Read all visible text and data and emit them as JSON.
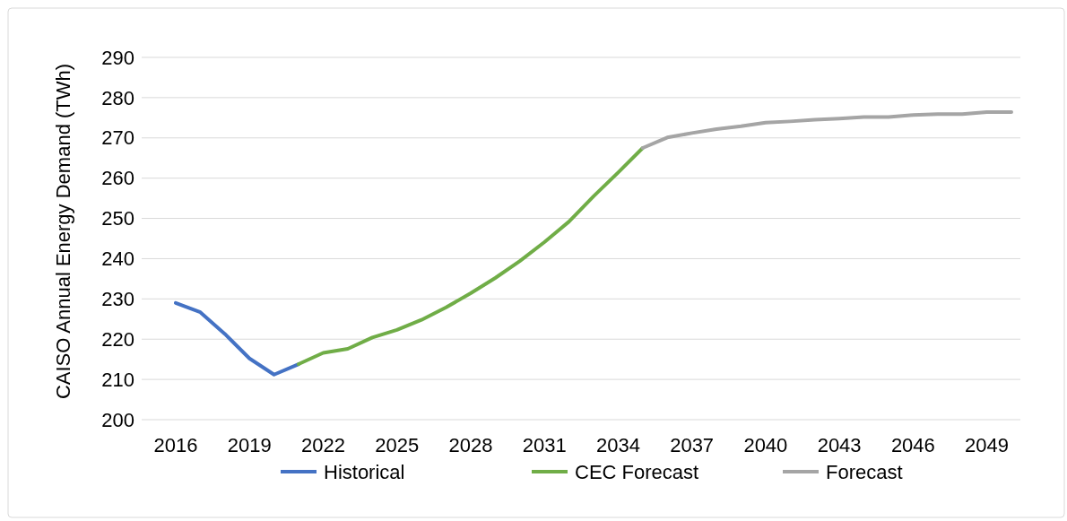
{
  "chart_data": {
    "type": "line",
    "ylabel": "CAISO Annual Energy Demand (TWh)",
    "categories": [
      "2016",
      null,
      null,
      "2019",
      null,
      null,
      "2022",
      null,
      null,
      "2025",
      null,
      null,
      "2028",
      null,
      null,
      "2031",
      null,
      null,
      "2034",
      null,
      null,
      "2037",
      null,
      null,
      "2040",
      null,
      null,
      "2043",
      null,
      null,
      "2046",
      null,
      null,
      "2049",
      null
    ],
    "series": [
      {
        "name": "Historical",
        "color": "#4472c4",
        "values": [
          229,
          226.7,
          221.3,
          215.2,
          211.2,
          213.8,
          null,
          null,
          null,
          null,
          null,
          null,
          null,
          null,
          null,
          null,
          null,
          null,
          null,
          null,
          null,
          null,
          null,
          null,
          null,
          null,
          null,
          null,
          null,
          null,
          null,
          null,
          null,
          null,
          null
        ]
      },
      {
        "name": "CEC Forecast",
        "color": "#70ad47",
        "values": [
          null,
          null,
          null,
          null,
          null,
          213.8,
          216.6,
          217.6,
          220.4,
          222.3,
          224.8,
          227.9,
          231.4,
          235.2,
          239.4,
          244.1,
          249.2,
          255.5,
          261.4,
          267.5,
          null,
          null,
          null,
          null,
          null,
          null,
          null,
          null,
          null,
          null,
          null,
          null,
          null,
          null,
          null
        ]
      },
      {
        "name": "Forecast",
        "color": "#a5a5a5",
        "values": [
          null,
          null,
          null,
          null,
          null,
          null,
          null,
          null,
          null,
          null,
          null,
          null,
          null,
          null,
          null,
          null,
          null,
          null,
          null,
          267.5,
          270.1,
          271.2,
          272.2,
          272.9,
          273.8,
          274.1,
          274.5,
          274.8,
          275.2,
          275.2,
          275.7,
          275.9,
          275.9,
          276.4,
          276.4
        ]
      }
    ],
    "ylim": [
      200,
      290
    ],
    "yticks": [
      200,
      210,
      220,
      230,
      240,
      250,
      260,
      270,
      280,
      290
    ],
    "grid": "y",
    "legend": "bottom",
    "marker": "none",
    "line_style": "solid"
  }
}
